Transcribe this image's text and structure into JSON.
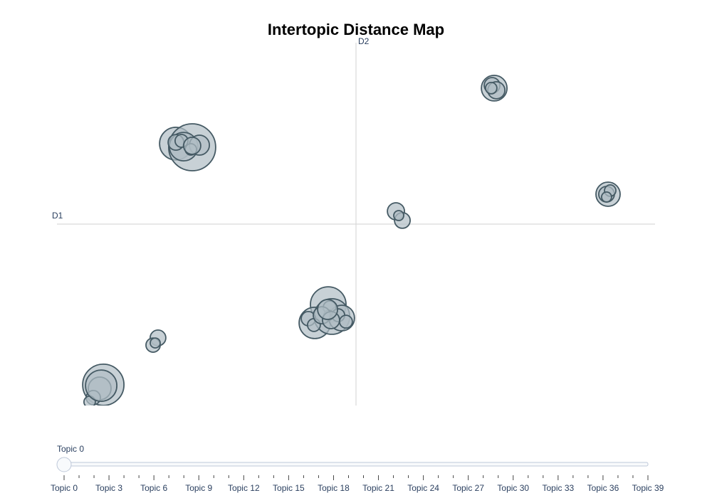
{
  "chart_data": {
    "type": "scatter",
    "title": "Intertopic Distance Map",
    "xlabel": "D1",
    "ylabel": "D2",
    "xlim": [
      -14,
      14
    ],
    "ylim": [
      -8.5,
      8.5
    ],
    "color": "#b0bec5",
    "edgecolor": "#455a64",
    "x": [
      6.47,
      6.37,
      6.57,
      11.8,
      11.73,
      11.9,
      1.87,
      2.17,
      -8.43,
      -7.67,
      -8.07,
      -7.33,
      -8.43,
      -7.73,
      -1.3,
      -1.93,
      -1.13,
      -0.67,
      -2.23,
      -1.97,
      -1.23,
      -1.27,
      -0.83,
      -0.47,
      -1.6,
      -9.27,
      -9.5,
      -9.4,
      -11.83,
      -12,
      -12.3,
      -12.47,
      -11.93,
      -1.17,
      -8.17,
      6.33,
      2.0,
      11.73,
      -1.33,
      -7.67
    ],
    "y": [
      6.37,
      6.5,
      6.27,
      1.4,
      1.4,
      1.57,
      0.6,
      0.17,
      3.77,
      3.6,
      3.63,
      3.7,
      3.83,
      3.5,
      -3.77,
      -4.63,
      -4.33,
      -4.4,
      -4.43,
      -4.73,
      -3.9,
      -4.27,
      -4.27,
      -4.57,
      -4.27,
      -5.33,
      -5.67,
      -5.57,
      -7.53,
      -7.7,
      -8.13,
      -8.33,
      -7.57,
      -4.5,
      3.9,
      6.37,
      0.4,
      1.27,
      -4.0,
      3.67
    ],
    "sizes": [
      18,
      11,
      12,
      17,
      11,
      8,
      12,
      11,
      23,
      33,
      20,
      14,
      11,
      8,
      25,
      22,
      25,
      18,
      10,
      9,
      9,
      7,
      9,
      9,
      12,
      11,
      10,
      7,
      29,
      16,
      10,
      8,
      22,
      12,
      9,
      8,
      7,
      7,
      14,
      12
    ],
    "slider": {
      "active": 0,
      "steps": [
        "Topic 0",
        null,
        null,
        "Topic 3",
        null,
        null,
        "Topic 6",
        null,
        null,
        "Topic 9",
        null,
        null,
        "Topic 12",
        null,
        null,
        "Topic 15",
        null,
        null,
        "Topic 18",
        null,
        null,
        "Topic 21",
        null,
        null,
        "Topic 24",
        null,
        null,
        "Topic 27",
        null,
        null,
        "Topic 30",
        null,
        null,
        "Topic 33",
        null,
        null,
        "Topic 36",
        null,
        null,
        "Topic 39"
      ]
    }
  }
}
